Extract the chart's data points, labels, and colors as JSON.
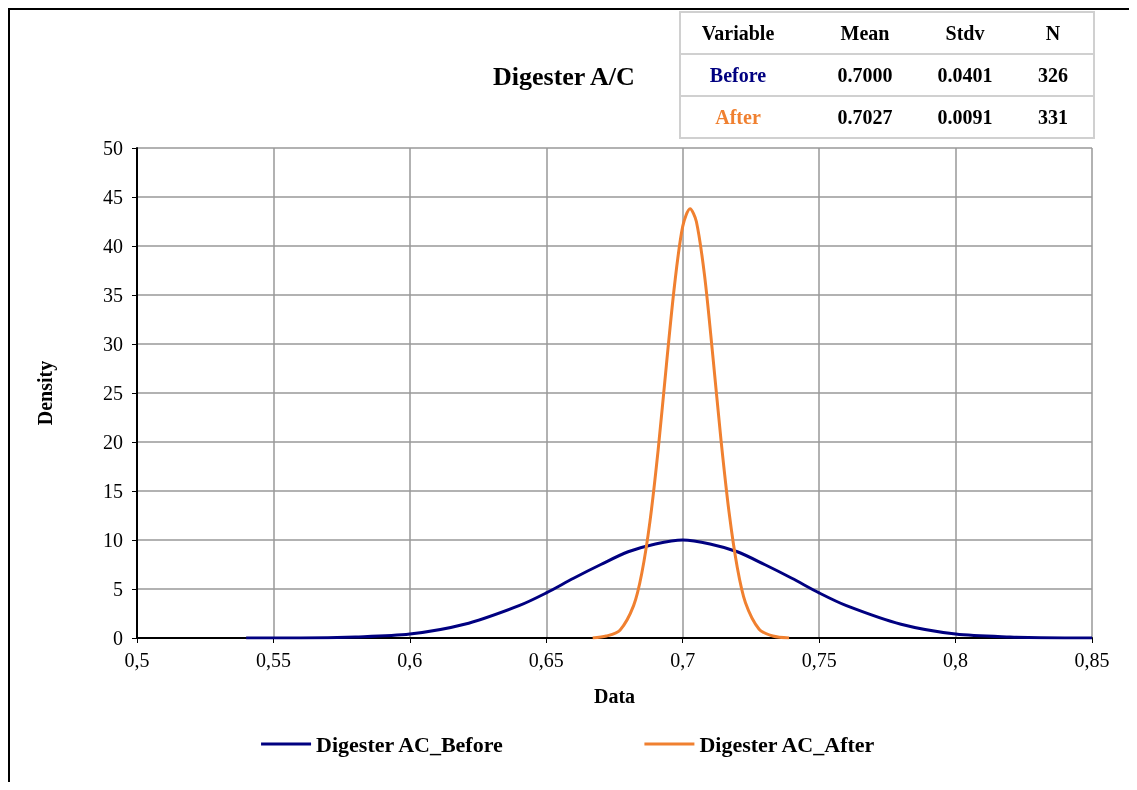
{
  "chart_data": {
    "type": "line",
    "title": "Digester A/C",
    "xlabel": "Data",
    "ylabel": "Density",
    "annotations": [
      "Variable",
      "Mean",
      "Stdv",
      "N",
      "Before",
      "0.7000",
      "0.0401",
      "326",
      "After",
      "0.7027",
      "0.0091",
      "331"
    ],
    "series": [
      {
        "name": "Digester AC_Before",
        "color": "#000080",
        "x": [
          0.54,
          0.56,
          0.58,
          0.6,
          0.62,
          0.64,
          0.65,
          0.66,
          0.67,
          0.68,
          0.69,
          0.7,
          0.71,
          0.72,
          0.73,
          0.74,
          0.75,
          0.76,
          0.78,
          0.8,
          0.82,
          0.84,
          0.85
        ],
        "values": [
          0.0,
          0.0,
          0.1,
          0.4,
          1.4,
          3.3,
          4.6,
          6.1,
          7.5,
          8.8,
          9.6,
          10.0,
          9.6,
          8.8,
          7.5,
          6.1,
          4.6,
          3.3,
          1.4,
          0.4,
          0.1,
          0.0,
          0.0
        ]
      },
      {
        "name": "Digester AC_After",
        "color": "#f08030",
        "x": [
          0.667,
          0.672,
          0.677,
          0.682,
          0.685,
          0.688,
          0.691,
          0.694,
          0.697,
          0.7,
          0.7027,
          0.705,
          0.708,
          0.711,
          0.714,
          0.717,
          0.72,
          0.723,
          0.728,
          0.733,
          0.739
        ],
        "values": [
          0.0,
          0.2,
          0.8,
          3.3,
          6.6,
          11.9,
          19.2,
          27.8,
          36.0,
          42.0,
          43.8,
          42.5,
          37.0,
          28.9,
          20.3,
          12.8,
          7.2,
          3.6,
          0.9,
          0.2,
          0.0
        ]
      }
    ],
    "xlim": [
      0.5,
      0.85
    ],
    "xticks": [
      {
        "value": 0.5,
        "label": "0,5"
      },
      {
        "value": 0.55,
        "label": "0,55"
      },
      {
        "value": 0.6,
        "label": "0,6"
      },
      {
        "value": 0.65,
        "label": "0,65"
      },
      {
        "value": 0.7,
        "label": "0,7"
      },
      {
        "value": 0.75,
        "label": "0,75"
      },
      {
        "value": 0.8,
        "label": "0,8"
      },
      {
        "value": 0.85,
        "label": "0,85"
      }
    ],
    "ylim": [
      0,
      50
    ],
    "yticks": [
      0,
      5,
      10,
      15,
      20,
      25,
      30,
      35,
      40,
      45,
      50
    ],
    "grid": true,
    "legend": "bottom",
    "marker": "none"
  }
}
